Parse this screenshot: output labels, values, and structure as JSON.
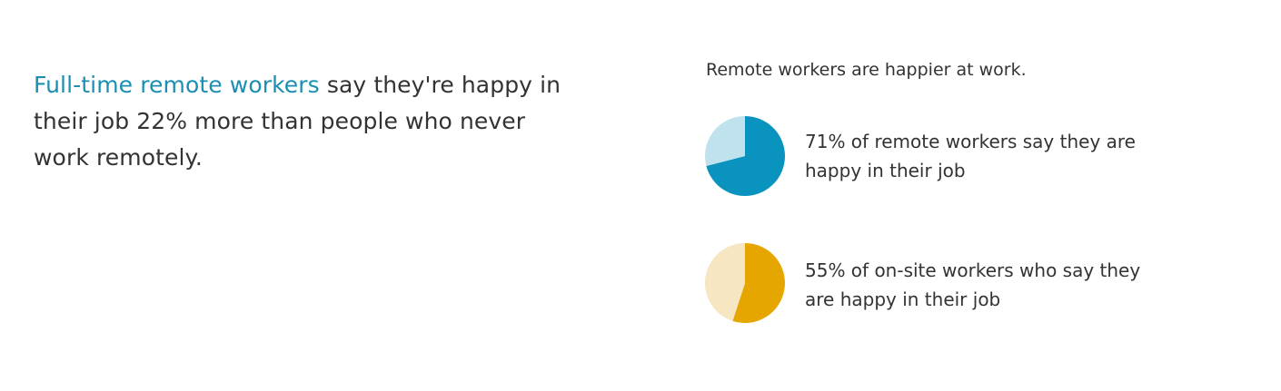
{
  "intro": {
    "highlight": "Full-time remote workers",
    "rest": " say they're happy in their job 22% more than people who never work remotely."
  },
  "stats": {
    "title": "Remote workers are happier at work."
  },
  "chart_data": [
    {
      "type": "pie",
      "caption": "71% of remote workers say they are happy in their job",
      "values": [
        71,
        29
      ],
      "colors": [
        "#0b93c0",
        "#bfe2ee"
      ]
    },
    {
      "type": "pie",
      "caption": "55% of on-site workers who say they are happy in their job",
      "values": [
        55,
        45
      ],
      "colors": [
        "#e6a600",
        "#f7e6c2"
      ]
    }
  ]
}
